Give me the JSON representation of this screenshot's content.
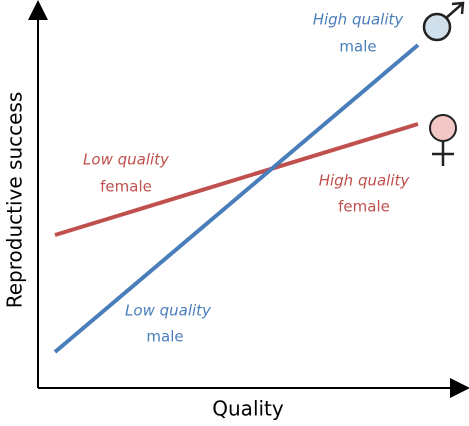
{
  "axes": {
    "y_label": "Reproductive success",
    "x_label": "Quality"
  },
  "labels": [
    {
      "line1": "High quality",
      "line2": "male"
    },
    {
      "line1": "Low quality",
      "line2": "female"
    },
    {
      "line1": "High quality",
      "line2": "female"
    },
    {
      "line1": "Low quality",
      "line2": "male"
    }
  ]
}
